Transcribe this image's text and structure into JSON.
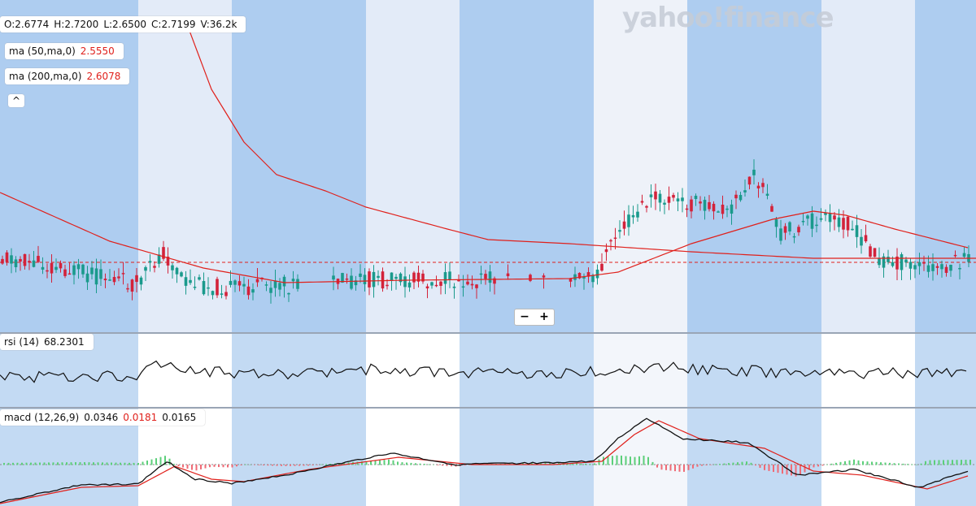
{
  "header": {
    "logo": "yahoo!finance"
  },
  "legend": {
    "ohlcv": [
      "O:2.6774",
      "H:2.7200",
      "L:2.6500",
      "C:2.7199",
      "V:36.2k"
    ],
    "ma": [
      {
        "label": "ma (50,ma,0)",
        "value": "2.5550"
      },
      {
        "label": "ma (200,ma,0)",
        "value": "2.6078"
      }
    ],
    "collapse": "^"
  },
  "zoom": {
    "out": "−",
    "in": "+"
  },
  "rsi": {
    "label": "rsi (14)",
    "value": "68.2301"
  },
  "macd": {
    "label": "macd (12,26,9)",
    "values": [
      "0.0346",
      "0.0181",
      "0.0165"
    ]
  }
}
